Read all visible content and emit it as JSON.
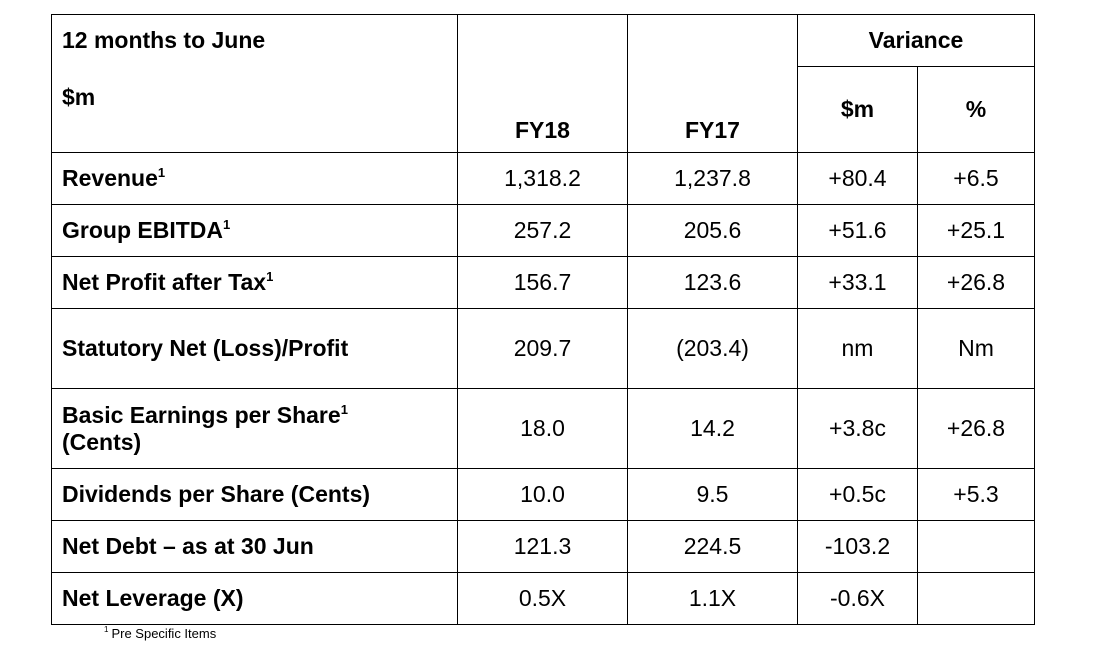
{
  "header": {
    "period": "12 months to June",
    "unit": "$m",
    "fy18": "FY18",
    "fy17": "FY17",
    "variance": "Variance",
    "var_dollar": "$m",
    "var_pct": "%"
  },
  "rows": [
    {
      "label": "Revenue",
      "sup": "1",
      "fy18": "1,318.2",
      "fy17": "1,237.8",
      "var_dollar": "+80.4",
      "var_pct": "+6.5"
    },
    {
      "label": "Group EBITDA",
      "sup": "1",
      "fy18": "257.2",
      "fy17": "205.6",
      "var_dollar": "+51.6",
      "var_pct": "+25.1"
    },
    {
      "label": "Net Profit after Tax",
      "sup": "1",
      "fy18": "156.7",
      "fy17": "123.6",
      "var_dollar": "+33.1",
      "var_pct": "+26.8"
    },
    {
      "label": "Statutory Net (Loss)/Profit",
      "sup": "",
      "fy18": "209.7",
      "fy17": "(203.4)",
      "var_dollar": "nm",
      "var_pct": "Nm"
    },
    {
      "label": "Basic Earnings per Share",
      "label2": "(Cents)",
      "sup": "1",
      "fy18": "18.0",
      "fy17": "14.2",
      "var_dollar": "+3.8c",
      "var_pct": "+26.8"
    },
    {
      "label": "Dividends per Share (Cents)",
      "sup": "",
      "fy18": "10.0",
      "fy17": "9.5",
      "var_dollar": "+0.5c",
      "var_pct": "+5.3"
    },
    {
      "label": "Net Debt – as at 30 Jun",
      "sup": "",
      "fy18": "121.3",
      "fy17": "224.5",
      "var_dollar": "-103.2",
      "var_pct": ""
    },
    {
      "label": "Net Leverage (X)",
      "sup": "",
      "fy18": "0.5X",
      "fy17": "1.1X",
      "var_dollar": "-0.6X",
      "var_pct": ""
    }
  ],
  "footnote": {
    "mark": "1",
    "text": "Pre Specific Items"
  }
}
